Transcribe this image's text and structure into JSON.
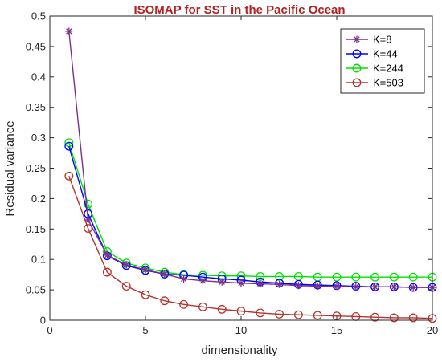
{
  "chart_data": {
    "type": "line",
    "title": "ISOMAP for SST in the Pacific Ocean",
    "xlabel": "dimensionality",
    "ylabel": "Residual variance",
    "xlim": [
      0,
      20
    ],
    "ylim": [
      0,
      0.5
    ],
    "xticks": [
      0,
      5,
      10,
      15,
      20
    ],
    "yticks": [
      0,
      0.05,
      0.1,
      0.15,
      0.2,
      0.25,
      0.3,
      0.35,
      0.4,
      0.45,
      0.5
    ],
    "xtick_labels": [
      "0",
      "5",
      "10",
      "15",
      "20"
    ],
    "ytick_labels": [
      "0",
      "0.05",
      "0.1",
      "0.15",
      "0.2",
      "0.25",
      "0.3",
      "0.35",
      "0.4",
      "0.45",
      "0.5"
    ],
    "grid": false,
    "legend_position": "top-right",
    "title_color": "#b22222",
    "x": [
      1,
      2,
      3,
      4,
      5,
      6,
      7,
      8,
      9,
      10,
      11,
      12,
      13,
      14,
      15,
      16,
      17,
      18,
      19,
      20
    ],
    "series": [
      {
        "name": "K=8",
        "color": "#7e2f8e",
        "marker": "asterisk",
        "values": [
          0.475,
          0.165,
          0.107,
          0.091,
          0.083,
          0.076,
          0.068,
          0.065,
          0.063,
          0.061,
          0.06,
          0.059,
          0.057,
          0.056,
          0.056,
          0.055,
          0.055,
          0.055,
          0.054,
          0.054
        ]
      },
      {
        "name": "K=44",
        "color": "#0000ff",
        "marker": "circle",
        "values": [
          0.286,
          0.175,
          0.106,
          0.09,
          0.082,
          0.076,
          0.074,
          0.071,
          0.068,
          0.066,
          0.063,
          0.061,
          0.059,
          0.058,
          0.057,
          0.056,
          0.055,
          0.055,
          0.054,
          0.054
        ]
      },
      {
        "name": "K=244",
        "color": "#00e000",
        "marker": "circle",
        "values": [
          0.292,
          0.191,
          0.113,
          0.094,
          0.086,
          0.079,
          0.075,
          0.074,
          0.073,
          0.073,
          0.072,
          0.072,
          0.072,
          0.071,
          0.071,
          0.071,
          0.071,
          0.071,
          0.071,
          0.071
        ]
      },
      {
        "name": "K=503",
        "color": "#b5332d",
        "marker": "circle",
        "values": [
          0.237,
          0.151,
          0.079,
          0.056,
          0.042,
          0.032,
          0.026,
          0.022,
          0.018,
          0.015,
          0.012,
          0.01,
          0.009,
          0.008,
          0.007,
          0.006,
          0.005,
          0.004,
          0.004,
          0.003
        ]
      }
    ]
  }
}
